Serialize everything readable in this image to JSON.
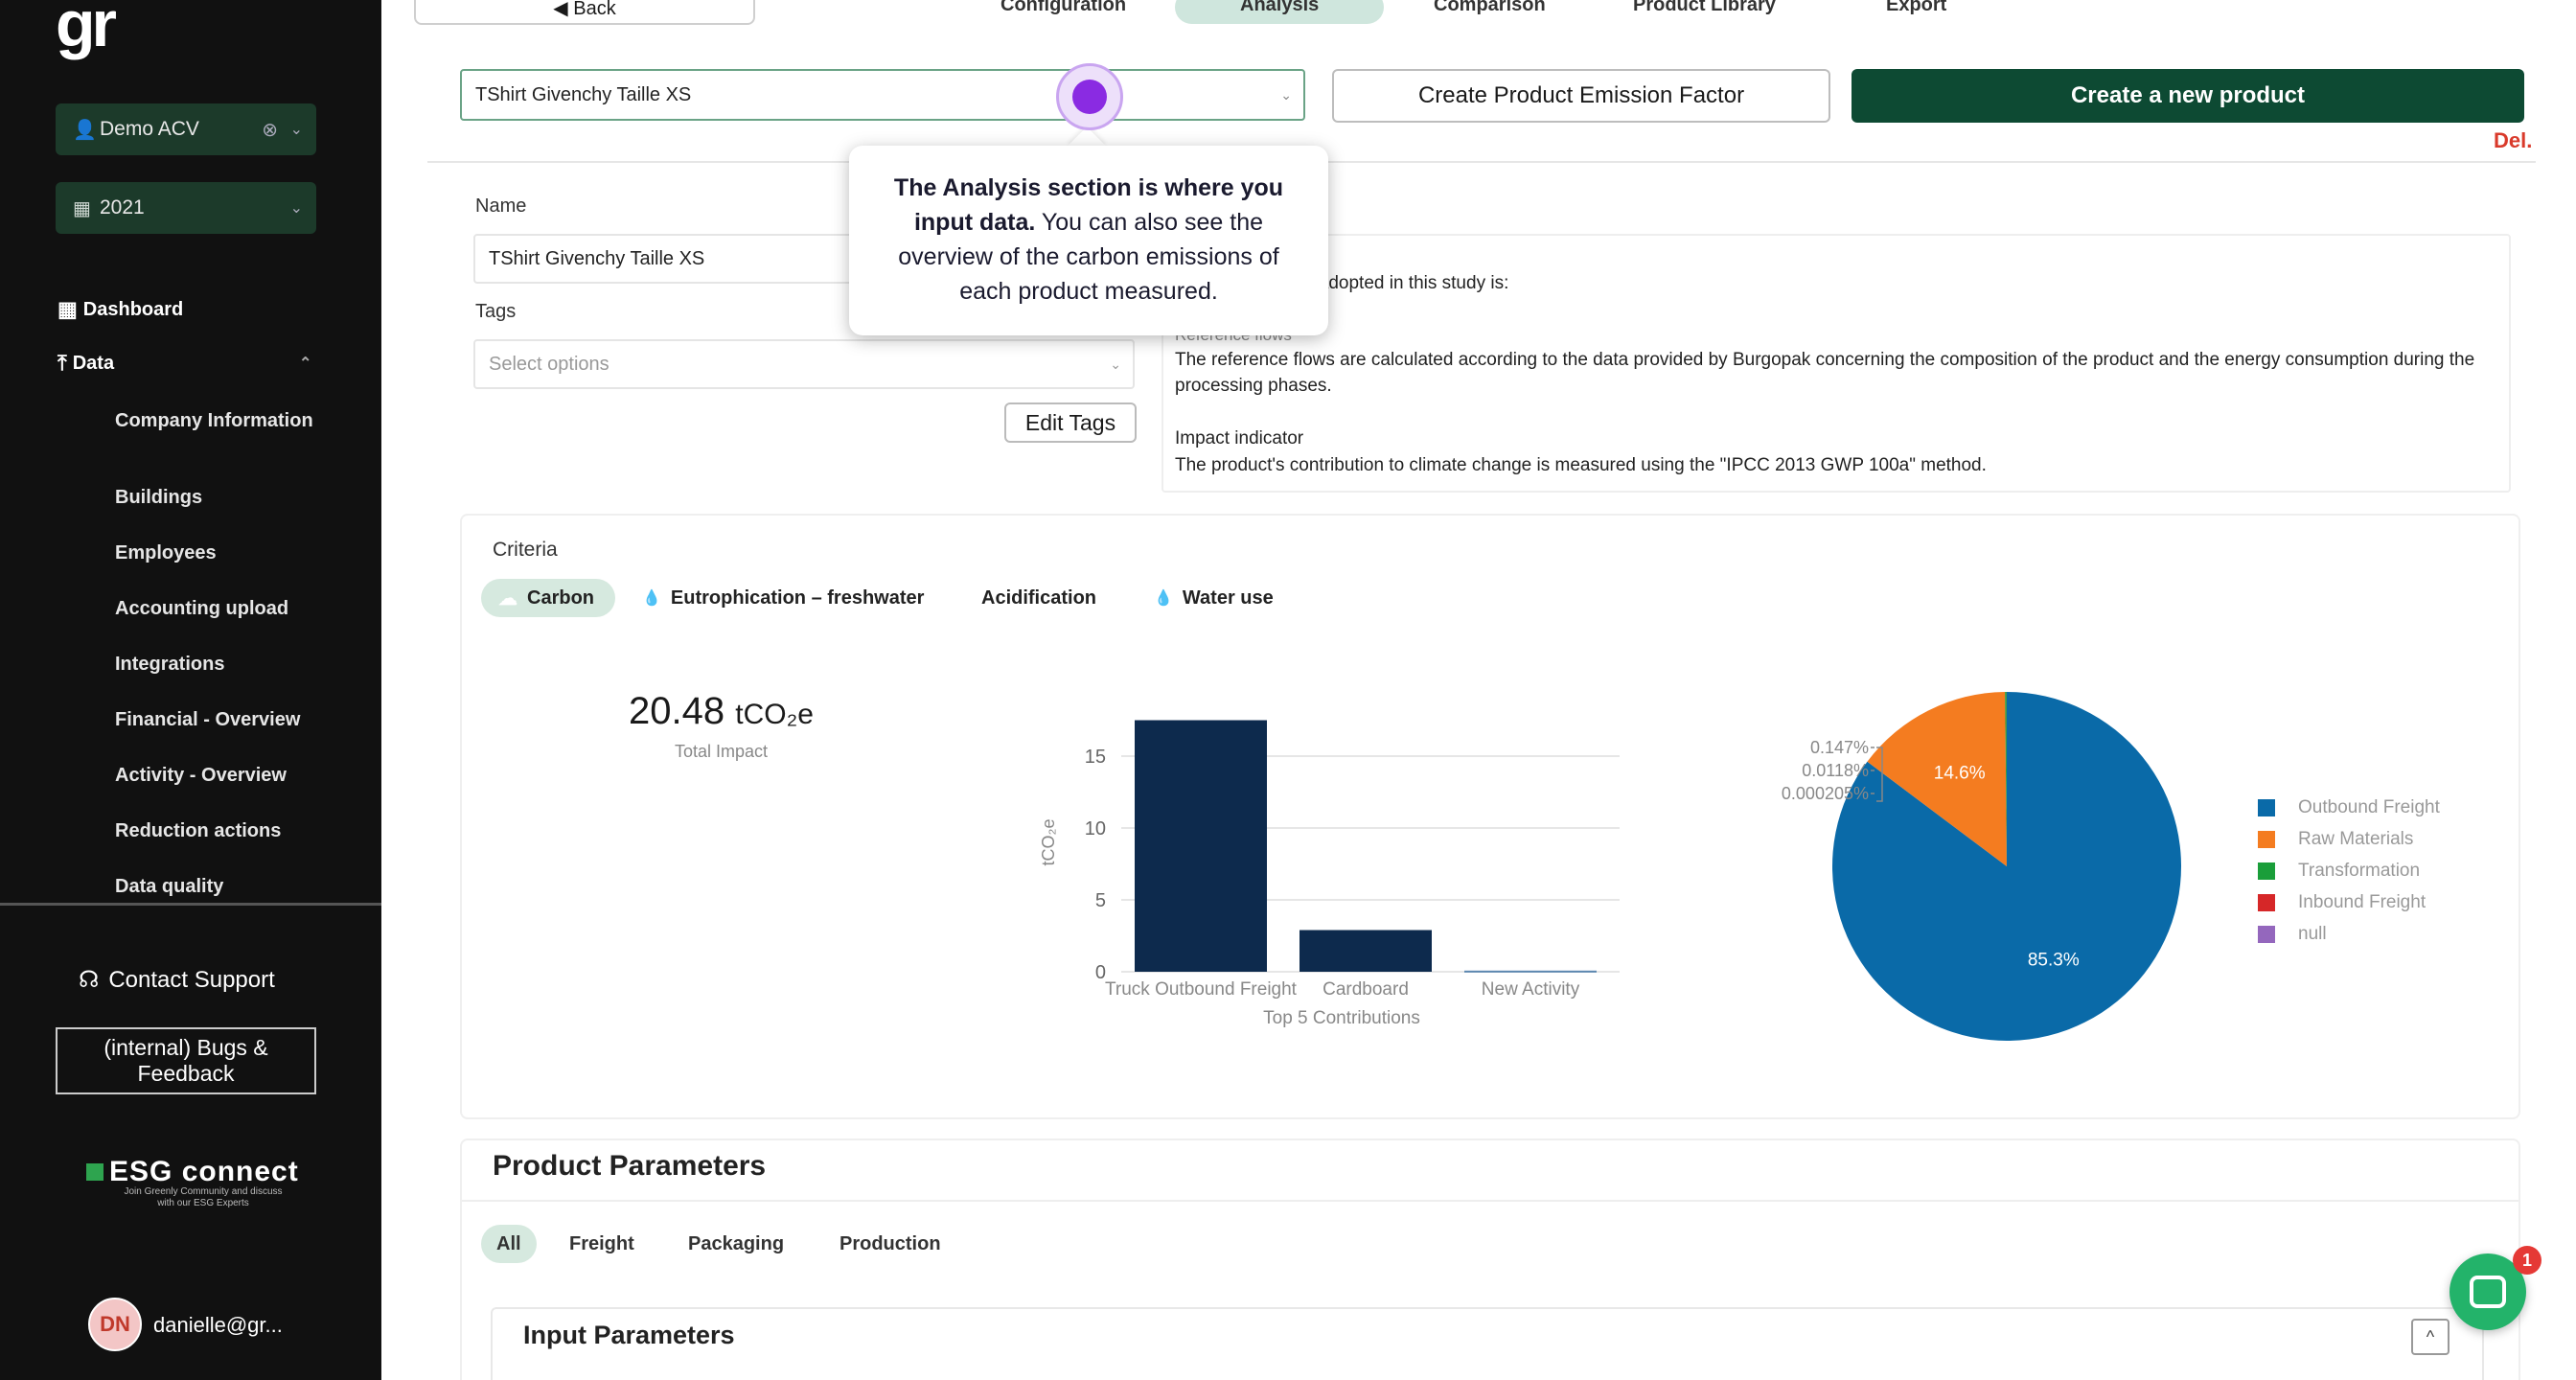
{
  "sidebar": {
    "logo": "gr",
    "organization": "Demo ACV",
    "year": "2021",
    "nav": {
      "dashboard": "Dashboard",
      "data": "Data",
      "items": [
        "Company Information",
        "Buildings",
        "Employees",
        "Accounting upload",
        "Integrations",
        "Financial - Overview",
        "Activity - Overview",
        "Reduction actions",
        "Data quality"
      ]
    },
    "contact_support": "Contact Support",
    "bugs_feedback": "(internal) Bugs & Feedback",
    "esg_brand": "ESG connect",
    "esg_sub": "Join Greenly Community and discuss with our ESG Experts",
    "user_initials": "DN",
    "user_email": "danielle@gr..."
  },
  "top_tabs": {
    "back": "Back",
    "configuration": "Configuration",
    "analysis": "Analysis",
    "comparison": "Comparison",
    "product_library": "Product Library",
    "export": "Export"
  },
  "controls": {
    "product_select_value": "TShirt Givenchy Taille XS",
    "create_emission_factor": "Create Product Emission Factor",
    "create_new_product": "Create a new product",
    "delete": "Del."
  },
  "tooltip": {
    "bold": "The Analysis section is where you input data.",
    "rest": " You can also see the overview of the carbon emissions of each product measured."
  },
  "form": {
    "name_label": "Name",
    "name_value": "TShirt Givenchy Taille XS",
    "tags_label": "Tags",
    "tags_placeholder": "Select options",
    "edit_tags": "Edit Tags",
    "desc_line1": "…it adopted in this study is:",
    "desc_heading_flows": "Reference flows",
    "desc_flows": "The reference flows are calculated according to the data provided by Burgopak concerning the composition of the product and the energy consumption during the processing phases.",
    "desc_heading_impact": "Impact indicator",
    "desc_impact": "The product's contribution to climate change is measured using the \"IPCC 2013 GWP 100a\" method."
  },
  "criteria": {
    "title": "Criteria",
    "tabs": [
      "Carbon",
      "Eutrophication – freshwater",
      "Acidification",
      "Water use"
    ]
  },
  "impact": {
    "value": "20.48",
    "unit": "tCO₂e",
    "label": "Total Impact"
  },
  "chart_data": [
    {
      "type": "bar",
      "categories": [
        "Truck Outbound Freight",
        "Cardboard",
        "New Activity"
      ],
      "values": [
        17.5,
        2.9,
        0.08
      ],
      "ylabel": "tCO₂e",
      "xlabel": "Top 5 Contributions",
      "yticks": [
        0,
        5,
        10,
        15
      ],
      "ylim": [
        0,
        18
      ],
      "grid": true,
      "color": "#0d2a4d"
    },
    {
      "type": "pie",
      "labels": [
        "Outbound Freight",
        "Raw Materials",
        "Transformation",
        "Inbound Freight",
        "null"
      ],
      "values": [
        85.3,
        14.6,
        0.147,
        0.0118,
        0.000205
      ],
      "slice_labels": [
        "85.3%",
        "14.6%",
        "0.147%",
        "0.0118%",
        "0.000205%"
      ],
      "colors": [
        "#0a6aa8",
        "#f47c20",
        "#1a9e3a",
        "#d62728",
        "#9467bd"
      ],
      "legend": "right"
    }
  ],
  "product_params": {
    "title": "Product Parameters",
    "tabs": [
      "All",
      "Freight",
      "Packaging",
      "Production"
    ],
    "input_params_title": "Input Parameters",
    "toggle_icon": "^"
  },
  "chat": {
    "badge": "1"
  }
}
